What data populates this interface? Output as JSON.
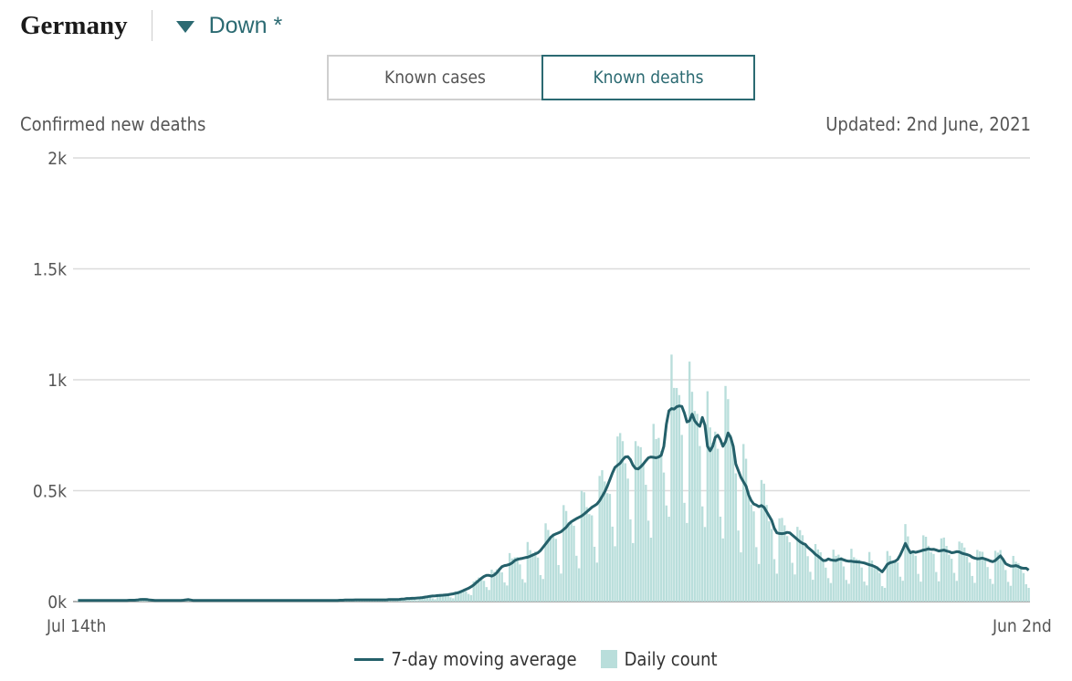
{
  "header": {
    "country": "Germany",
    "trend_label": "Down *",
    "trend_color": "#2b6a72"
  },
  "toggle": {
    "options": [
      "Known cases",
      "Known deaths"
    ],
    "selected": "Known deaths"
  },
  "chart_data": {
    "type": "bar",
    "ylabel": "Confirmed new deaths",
    "updated": "Updated: 2nd June, 2021",
    "x_start_label": "Jul 14th",
    "x_end_label": "Jun 2nd",
    "x_range": [
      "2020-07-14",
      "2021-06-02"
    ],
    "ylim": [
      0,
      2000
    ],
    "yticks": [
      0,
      500,
      1000,
      1500,
      2000
    ],
    "ytick_labels": [
      "0k",
      "0.5k",
      "1k",
      "1.5k",
      "2k"
    ],
    "grid": true,
    "legend_position": "bottom-center",
    "series": [
      {
        "name": "7-day moving average",
        "kind": "line",
        "color": "#24606a",
        "values": [
          5,
          5,
          5,
          5,
          5,
          5,
          5,
          5,
          5,
          5,
          5,
          5,
          5,
          5,
          5,
          5,
          5,
          5,
          5,
          5,
          6,
          6,
          6,
          7,
          9,
          10,
          10,
          9,
          7,
          6,
          5,
          5,
          5,
          5,
          5,
          5,
          5,
          5,
          5,
          5,
          5,
          6,
          8,
          9,
          7,
          5,
          5,
          5,
          5,
          5,
          5,
          5,
          5,
          5,
          5,
          5,
          5,
          5,
          5,
          5,
          5,
          5,
          5,
          5,
          5,
          5,
          5,
          5,
          5,
          5,
          5,
          5,
          5,
          5,
          5,
          5,
          5,
          5,
          5,
          5,
          5,
          5,
          5,
          5,
          5,
          5,
          5,
          5,
          5,
          5,
          5,
          5,
          5,
          5,
          5,
          5,
          5,
          5,
          5,
          5,
          5,
          5,
          6,
          6,
          7,
          7,
          7,
          7,
          8,
          8,
          8,
          8,
          8,
          8,
          8,
          8,
          8,
          8,
          8,
          8,
          8,
          9,
          9,
          9,
          9,
          10,
          11,
          12,
          14,
          14,
          15,
          15,
          16,
          17,
          18,
          20,
          22,
          24,
          25,
          26,
          27,
          28,
          29,
          30,
          31,
          33,
          35,
          38,
          40,
          45,
          50,
          55,
          60,
          67,
          75,
          85,
          95,
          105,
          113,
          118,
          118,
          115,
          120,
          130,
          145,
          157,
          162,
          164,
          168,
          175,
          185,
          190,
          193,
          195,
          198,
          200,
          205,
          210,
          215,
          220,
          230,
          245,
          260,
          275,
          290,
          300,
          305,
          310,
          315,
          325,
          335,
          350,
          360,
          367,
          374,
          380,
          386,
          395,
          405,
          415,
          425,
          432,
          440,
          455,
          475,
          495,
          520,
          550,
          580,
          605,
          615,
          624,
          640,
          652,
          653,
          640,
          615,
          600,
          598,
          608,
          620,
          635,
          648,
          652,
          650,
          648,
          652,
          660,
          700,
          800,
          860,
          870,
          868,
          878,
          882,
          880,
          850,
          810,
          815,
          845,
          815,
          800,
          790,
          830,
          795,
          700,
          680,
          700,
          740,
          750,
          730,
          700,
          720,
          760,
          740,
          700,
          620,
          590,
          560,
          540,
          520,
          480,
          455,
          440,
          435,
          428,
          433,
          425,
          405,
          385,
          365,
          330,
          310,
          307,
          306,
          308,
          312,
          310,
          300,
          290,
          280,
          270,
          262,
          258,
          245,
          235,
          225,
          213,
          205,
          195,
          185,
          185,
          192,
          188,
          186,
          185,
          190,
          192,
          188,
          184,
          182,
          182,
          180,
          179,
          178,
          176,
          174,
          170,
          166,
          163,
          158,
          152,
          143,
          134,
          150,
          168,
          175,
          178,
          182,
          190,
          210,
          235,
          262,
          240,
          220,
          225,
          222,
          225,
          228,
          232,
          234,
          238,
          235,
          236,
          232,
          228,
          230,
          232,
          228,
          225,
          220,
          222,
          225,
          224,
          218,
          215,
          212,
          208,
          200,
          196,
          193,
          194,
          196,
          192,
          188,
          183,
          180,
          185,
          196,
          206,
          190,
          171,
          165,
          160,
          160,
          162,
          158,
          152,
          150,
          150,
          142
        ]
      },
      {
        "name": "Daily count",
        "kind": "bar",
        "color": "#b9dedb"
      }
    ]
  }
}
